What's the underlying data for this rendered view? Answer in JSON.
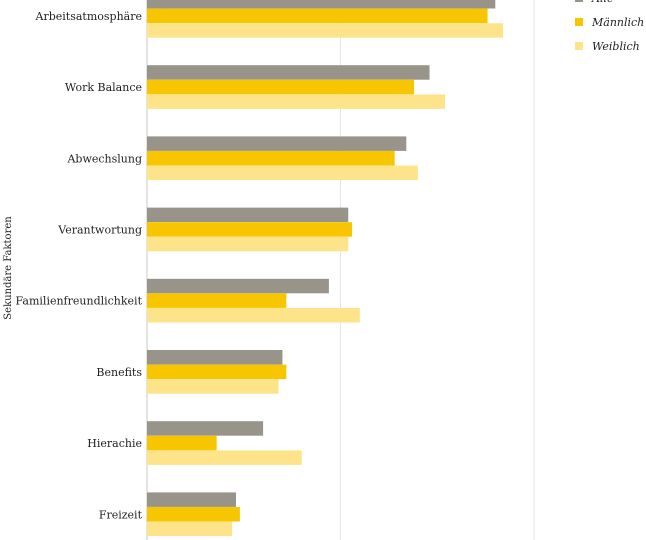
{
  "chart_data": {
    "type": "bar",
    "orientation": "horizontal",
    "ylabel": "Sekundäre Faktoren",
    "categories": [
      "Arbeitsatmosphäre",
      "Work Balance",
      "Abwechslung",
      "Verantwortung",
      "Familienfreundlichkeit",
      "Benefits",
      "Hierachie",
      "Freizeit"
    ],
    "series": [
      {
        "name": "Alle",
        "color": "#98948a",
        "values": [
          90,
          73,
          67,
          52,
          47,
          35,
          30,
          23
        ]
      },
      {
        "name": "Männlich",
        "color": "#f7c600",
        "values": [
          88,
          69,
          64,
          53,
          36,
          36,
          18,
          24
        ]
      },
      {
        "name": "Weiblich",
        "color": "#fde48a",
        "values": [
          92,
          77,
          70,
          52,
          55,
          34,
          40,
          22
        ]
      }
    ],
    "xlim": [
      0,
      100
    ],
    "grid": true,
    "legend": "top-right"
  }
}
